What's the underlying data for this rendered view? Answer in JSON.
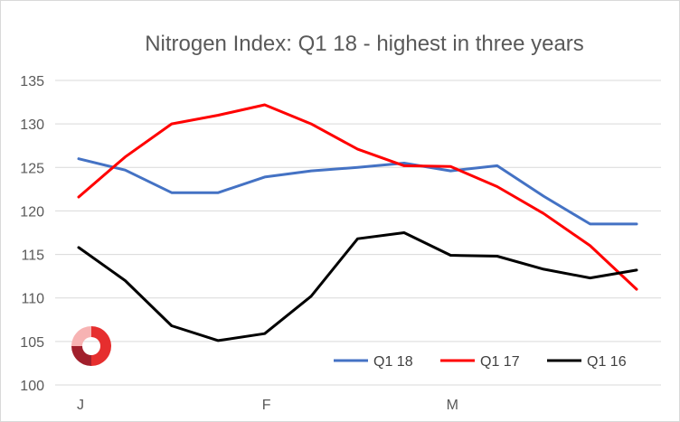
{
  "chart_data": {
    "type": "line",
    "title": "Nitrogen Index: Q1 18 - highest in three years",
    "xlabel": "",
    "ylabel": "",
    "ylim": [
      100,
      135
    ],
    "y_ticks": [
      100,
      105,
      110,
      115,
      120,
      125,
      130,
      135
    ],
    "grid": true,
    "legend_position": "bottom-right",
    "x_tick_labels": [
      {
        "label": "J",
        "index": 0
      },
      {
        "label": "F",
        "index": 4
      },
      {
        "label": "M",
        "index": 8
      }
    ],
    "points_count": 13,
    "series": [
      {
        "name": "Q1 18",
        "color": "#4472c4",
        "values": [
          126.0,
          124.7,
          122.1,
          122.1,
          123.9,
          124.6,
          125.0,
          125.5,
          124.6,
          125.2,
          121.7,
          118.5,
          118.5
        ]
      },
      {
        "name": "Q1 17",
        "color": "#ff0000",
        "values": [
          121.6,
          126.2,
          130.0,
          131.0,
          132.2,
          130.0,
          127.1,
          125.2,
          125.1,
          122.8,
          119.7,
          116.0,
          111.0
        ]
      },
      {
        "name": "Q1 16",
        "color": "#000000",
        "values": [
          115.8,
          112.0,
          106.8,
          105.1,
          105.9,
          110.2,
          116.8,
          117.5,
          114.9,
          114.8,
          113.3,
          112.3,
          113.2
        ]
      }
    ]
  },
  "logo": {
    "name": "ring-logo",
    "colors": [
      "#f7b3b3",
      "#e62e2e",
      "#a11f2c"
    ]
  }
}
